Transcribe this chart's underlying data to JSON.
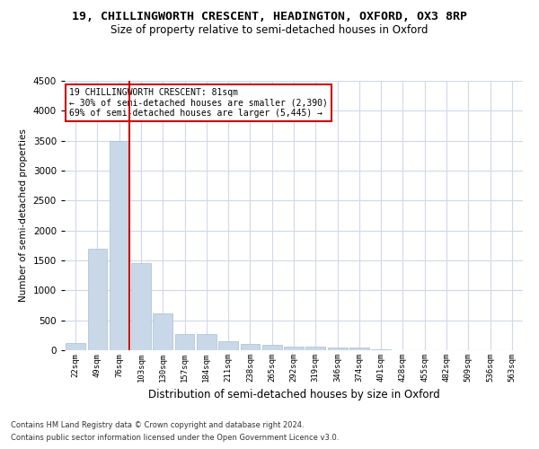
{
  "title_line1": "19, CHILLINGWORTH CRESCENT, HEADINGTON, OXFORD, OX3 8RP",
  "title_line2": "Size of property relative to semi-detached houses in Oxford",
  "xlabel": "Distribution of semi-detached houses by size in Oxford",
  "ylabel": "Number of semi-detached properties",
  "footnote1": "Contains HM Land Registry data © Crown copyright and database right 2024.",
  "footnote2": "Contains public sector information licensed under the Open Government Licence v3.0.",
  "categories": [
    "22sqm",
    "49sqm",
    "76sqm",
    "103sqm",
    "130sqm",
    "157sqm",
    "184sqm",
    "211sqm",
    "238sqm",
    "265sqm",
    "292sqm",
    "319sqm",
    "346sqm",
    "374sqm",
    "401sqm",
    "428sqm",
    "455sqm",
    "482sqm",
    "509sqm",
    "536sqm",
    "563sqm"
  ],
  "values": [
    120,
    1700,
    3500,
    1450,
    620,
    270,
    270,
    145,
    100,
    90,
    65,
    55,
    50,
    40,
    10,
    5,
    3,
    2,
    1,
    1,
    1
  ],
  "bar_color": "#c8d8e8",
  "bar_edge_color": "#a8bfd0",
  "grid_color": "#d0d8e8",
  "annotation_box_color": "#ffffff",
  "annotation_border_color": "#cc0000",
  "property_line_color": "#cc0000",
  "property_bar_index": 2,
  "annotation_line1": "19 CHILLINGWORTH CRESCENT: 81sqm",
  "annotation_line2": "← 30% of semi-detached houses are smaller (2,390)",
  "annotation_line3": "69% of semi-detached houses are larger (5,445) →",
  "ylim": [
    0,
    4500
  ],
  "yticks": [
    0,
    500,
    1000,
    1500,
    2000,
    2500,
    3000,
    3500,
    4000,
    4500
  ],
  "background_color": "#ffffff",
  "title1_fontsize": 9.5,
  "title2_fontsize": 8.5
}
